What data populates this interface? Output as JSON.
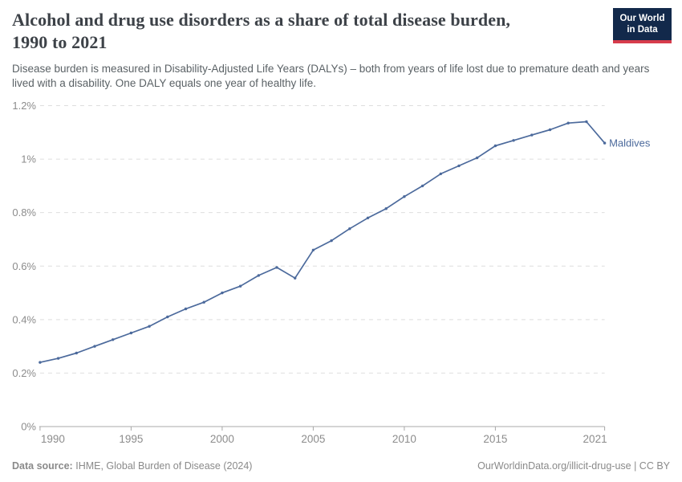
{
  "header": {
    "title_line1": "Alcohol and drug use disorders as a share of total disease burden,",
    "title_line2": "1990 to 2021",
    "subtitle": "Disease burden is measured in Disability-Adjusted Life Years (DALYs) – both from years of life lost due to premature death and years lived with a disability. One DALY equals one year of healthy life.",
    "logo_line1": "Our World",
    "logo_line2": "in Data",
    "logo_bg_color": "#12294b",
    "logo_accent_color": "#d73c4c"
  },
  "chart_data": {
    "type": "line",
    "title": "Alcohol and drug use disorders as a share of total disease burden, 1990 to 2021",
    "xlabel": "",
    "ylabel": "",
    "unit": "%",
    "ylim": [
      0,
      1.2
    ],
    "grid": "horizontal dashed",
    "legend_position": "end-of-line label",
    "x": [
      1990,
      1991,
      1992,
      1993,
      1994,
      1995,
      1996,
      1997,
      1998,
      1999,
      2000,
      2001,
      2002,
      2003,
      2004,
      2005,
      2006,
      2007,
      2008,
      2009,
      2010,
      2011,
      2012,
      2013,
      2014,
      2015,
      2016,
      2017,
      2018,
      2019,
      2020,
      2021
    ],
    "series": [
      {
        "name": "Maldives",
        "color": "#4c6a9c",
        "values": [
          0.24,
          0.255,
          0.275,
          0.3,
          0.325,
          0.35,
          0.375,
          0.41,
          0.44,
          0.465,
          0.5,
          0.525,
          0.565,
          0.595,
          0.555,
          0.66,
          0.695,
          0.74,
          0.78,
          0.815,
          0.86,
          0.9,
          0.945,
          0.975,
          1.005,
          1.05,
          1.07,
          1.09,
          1.11,
          1.135,
          1.14,
          1.06
        ]
      }
    ],
    "yticks": [
      {
        "value": 0,
        "label": "0%"
      },
      {
        "value": 0.2,
        "label": "0.2%"
      },
      {
        "value": 0.4,
        "label": "0.4%"
      },
      {
        "value": 0.6,
        "label": "0.6%"
      },
      {
        "value": 0.8,
        "label": "0.8%"
      },
      {
        "value": 1,
        "label": "1%"
      },
      {
        "value": 1.2,
        "label": "1.2%"
      }
    ],
    "xticks": [
      {
        "value": 1990,
        "label": "1990"
      },
      {
        "value": 1995,
        "label": "1995"
      },
      {
        "value": 2000,
        "label": "2000"
      },
      {
        "value": 2005,
        "label": "2005"
      },
      {
        "value": 2010,
        "label": "2010"
      },
      {
        "value": 2015,
        "label": "2015"
      },
      {
        "value": 2021,
        "label": "2021"
      }
    ]
  },
  "footer": {
    "datasource_label": "Data source:",
    "datasource_text": "IHME, Global Burden of Disease (2024)",
    "credit": "OurWorldinData.org/illicit-drug-use | CC BY"
  }
}
